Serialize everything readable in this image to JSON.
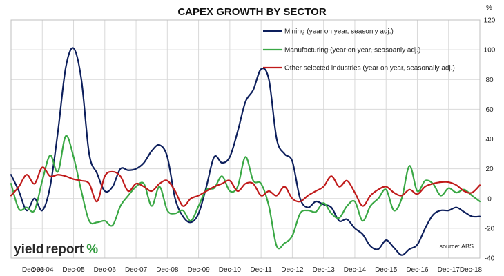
{
  "chart_data": {
    "type": "line",
    "title": "CAPEX GROWTH BY SECTOR",
    "y_unit": "%",
    "ylim": [
      -40,
      120
    ],
    "yticks": [
      -40,
      -20,
      0,
      20,
      40,
      60,
      80,
      100,
      120
    ],
    "xlim": [
      "Dec-03",
      "Dec-18"
    ],
    "xticks": [
      "Dec-03",
      "Dec-04",
      "Dec-05",
      "Dec-06",
      "Dec-07",
      "Dec-08",
      "Dec-09",
      "Dec-10",
      "Dec-11",
      "Dec-12",
      "Dec-13",
      "Dec-14",
      "Dec-15",
      "Dec-16",
      "Dec-17",
      "Dec-18"
    ],
    "grid": true,
    "legend_position": "top-right",
    "source": "source: ABS",
    "logo": {
      "part1": "yield",
      "part2": "report",
      "part3": "%"
    },
    "series": [
      {
        "name": "Mining (year on year, seasonly adj.)",
        "color": "#0d1f5c",
        "points": [
          [
            "2003-12",
            16
          ],
          [
            "2004-03",
            5
          ],
          [
            "2004-06",
            -8
          ],
          [
            "2004-09",
            0
          ],
          [
            "2004-12",
            -8
          ],
          [
            "2005-03",
            8
          ],
          [
            "2005-06",
            45
          ],
          [
            "2005-09",
            88
          ],
          [
            "2005-12",
            101
          ],
          [
            "2006-03",
            80
          ],
          [
            "2006-06",
            30
          ],
          [
            "2006-09",
            17
          ],
          [
            "2006-12",
            5
          ],
          [
            "2007-03",
            8
          ],
          [
            "2007-06",
            20
          ],
          [
            "2007-09",
            19
          ],
          [
            "2007-12",
            20
          ],
          [
            "2008-03",
            24
          ],
          [
            "2008-06",
            32
          ],
          [
            "2008-09",
            36
          ],
          [
            "2008-12",
            28
          ],
          [
            "2009-03",
            0
          ],
          [
            "2009-06",
            -12
          ],
          [
            "2009-09",
            -16
          ],
          [
            "2009-12",
            -10
          ],
          [
            "2010-03",
            8
          ],
          [
            "2010-06",
            28
          ],
          [
            "2010-09",
            24
          ],
          [
            "2010-12",
            28
          ],
          [
            "2011-03",
            45
          ],
          [
            "2011-06",
            65
          ],
          [
            "2011-09",
            73
          ],
          [
            "2011-12",
            87
          ],
          [
            "2012-03",
            80
          ],
          [
            "2012-06",
            40
          ],
          [
            "2012-09",
            30
          ],
          [
            "2012-12",
            25
          ],
          [
            "2013-03",
            0
          ],
          [
            "2013-06",
            -6
          ],
          [
            "2013-09",
            -2
          ],
          [
            "2013-12",
            -4
          ],
          [
            "2014-03",
            -6
          ],
          [
            "2014-06",
            -15
          ],
          [
            "2014-09",
            -14
          ],
          [
            "2014-12",
            -20
          ],
          [
            "2015-03",
            -24
          ],
          [
            "2015-06",
            -32
          ],
          [
            "2015-09",
            -34
          ],
          [
            "2015-12",
            -28
          ],
          [
            "2016-03",
            -33
          ],
          [
            "2016-06",
            -38
          ],
          [
            "2016-09",
            -34
          ],
          [
            "2016-12",
            -31
          ],
          [
            "2017-03",
            -20
          ],
          [
            "2017-06",
            -11
          ],
          [
            "2017-09",
            -8
          ],
          [
            "2017-12",
            -8
          ],
          [
            "2018-03",
            -6
          ],
          [
            "2018-06",
            -9
          ],
          [
            "2018-09",
            -12
          ],
          [
            "2018-12",
            -12
          ]
        ]
      },
      {
        "name": "Manufacturing (year on year, seasoanly adj.)",
        "color": "#3aa845",
        "points": [
          [
            "2003-12",
            10
          ],
          [
            "2004-03",
            -7
          ],
          [
            "2004-06",
            -6
          ],
          [
            "2004-09",
            -8
          ],
          [
            "2004-12",
            12
          ],
          [
            "2005-03",
            29
          ],
          [
            "2005-06",
            18
          ],
          [
            "2005-09",
            42
          ],
          [
            "2005-12",
            28
          ],
          [
            "2006-03",
            5
          ],
          [
            "2006-06",
            -15
          ],
          [
            "2006-09",
            -16
          ],
          [
            "2006-12",
            -15
          ],
          [
            "2007-03",
            -18
          ],
          [
            "2007-06",
            -5
          ],
          [
            "2007-09",
            2
          ],
          [
            "2007-12",
            8
          ],
          [
            "2008-03",
            10
          ],
          [
            "2008-06",
            -5
          ],
          [
            "2008-09",
            8
          ],
          [
            "2008-12",
            -8
          ],
          [
            "2009-03",
            -10
          ],
          [
            "2009-06",
            -8
          ],
          [
            "2009-09",
            -15
          ],
          [
            "2009-12",
            -5
          ],
          [
            "2010-03",
            6
          ],
          [
            "2010-06",
            7
          ],
          [
            "2010-09",
            15
          ],
          [
            "2010-12",
            5
          ],
          [
            "2011-03",
            8
          ],
          [
            "2011-06",
            28
          ],
          [
            "2011-09",
            12
          ],
          [
            "2011-12",
            10
          ],
          [
            "2012-03",
            -5
          ],
          [
            "2012-06",
            -32
          ],
          [
            "2012-09",
            -30
          ],
          [
            "2012-12",
            -25
          ],
          [
            "2013-03",
            -10
          ],
          [
            "2013-06",
            -8
          ],
          [
            "2013-09",
            -9
          ],
          [
            "2013-12",
            -3
          ],
          [
            "2014-03",
            -10
          ],
          [
            "2014-06",
            -13
          ],
          [
            "2014-09",
            -5
          ],
          [
            "2014-12",
            -2
          ],
          [
            "2015-03",
            -15
          ],
          [
            "2015-06",
            -5
          ],
          [
            "2015-09",
            0
          ],
          [
            "2015-12",
            6
          ],
          [
            "2016-03",
            -8
          ],
          [
            "2016-06",
            0
          ],
          [
            "2016-09",
            22
          ],
          [
            "2016-12",
            5
          ],
          [
            "2017-03",
            12
          ],
          [
            "2017-06",
            10
          ],
          [
            "2017-09",
            2
          ],
          [
            "2017-12",
            7
          ],
          [
            "2018-03",
            4
          ],
          [
            "2018-06",
            6
          ],
          [
            "2018-09",
            2
          ],
          [
            "2018-12",
            -2
          ]
        ]
      },
      {
        "name": "Other selected industries (year on year, seasonally adj.)",
        "color": "#c01a1a",
        "points": [
          [
            "2003-12",
            2
          ],
          [
            "2004-03",
            8
          ],
          [
            "2004-06",
            16
          ],
          [
            "2004-09",
            10
          ],
          [
            "2004-12",
            21
          ],
          [
            "2005-03",
            15
          ],
          [
            "2005-06",
            16
          ],
          [
            "2005-09",
            15
          ],
          [
            "2005-12",
            13
          ],
          [
            "2006-03",
            12
          ],
          [
            "2006-06",
            10
          ],
          [
            "2006-09",
            -2
          ],
          [
            "2006-12",
            15
          ],
          [
            "2007-03",
            18
          ],
          [
            "2007-06",
            15
          ],
          [
            "2007-09",
            5
          ],
          [
            "2007-12",
            10
          ],
          [
            "2008-03",
            8
          ],
          [
            "2008-06",
            5
          ],
          [
            "2008-09",
            10
          ],
          [
            "2008-12",
            12
          ],
          [
            "2009-03",
            5
          ],
          [
            "2009-06",
            -5
          ],
          [
            "2009-09",
            0
          ],
          [
            "2009-12",
            2
          ],
          [
            "2010-03",
            5
          ],
          [
            "2010-06",
            8
          ],
          [
            "2010-09",
            10
          ],
          [
            "2010-12",
            12
          ],
          [
            "2011-03",
            5
          ],
          [
            "2011-06",
            10
          ],
          [
            "2011-09",
            10
          ],
          [
            "2011-12",
            2
          ],
          [
            "2012-03",
            5
          ],
          [
            "2012-06",
            2
          ],
          [
            "2012-09",
            8
          ],
          [
            "2012-12",
            0
          ],
          [
            "2013-03",
            -2
          ],
          [
            "2013-06",
            2
          ],
          [
            "2013-09",
            5
          ],
          [
            "2013-12",
            8
          ],
          [
            "2014-03",
            15
          ],
          [
            "2014-06",
            8
          ],
          [
            "2014-09",
            12
          ],
          [
            "2014-12",
            4
          ],
          [
            "2015-03",
            -5
          ],
          [
            "2015-06",
            2
          ],
          [
            "2015-09",
            6
          ],
          [
            "2015-12",
            8
          ],
          [
            "2016-03",
            4
          ],
          [
            "2016-06",
            2
          ],
          [
            "2016-09",
            6
          ],
          [
            "2016-12",
            3
          ],
          [
            "2017-03",
            8
          ],
          [
            "2017-06",
            10
          ],
          [
            "2017-09",
            11
          ],
          [
            "2017-12",
            11
          ],
          [
            "2018-03",
            9
          ],
          [
            "2018-06",
            5
          ],
          [
            "2018-09",
            4
          ],
          [
            "2018-12",
            9
          ]
        ]
      }
    ]
  }
}
